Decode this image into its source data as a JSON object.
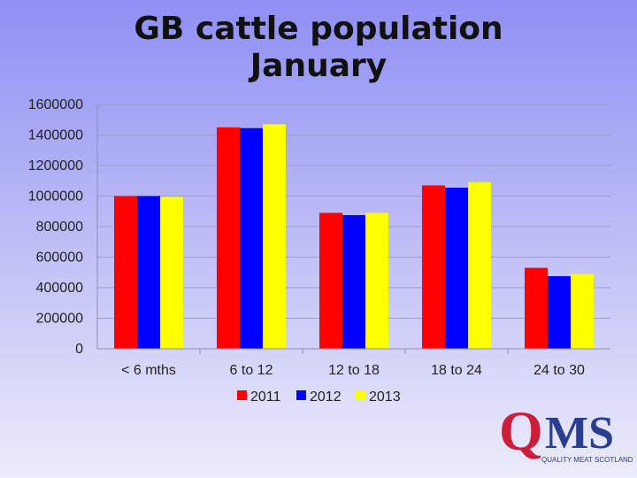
{
  "colors": {
    "2011": "#ff0000",
    "2012": "#0000ff",
    "2013": "#ffff00"
  },
  "logo": {
    "text": "QMS",
    "tagline": "QUALITY MEAT SCOTLAND"
  },
  "chart_data": {
    "type": "bar",
    "title": [
      "GB cattle population",
      "January"
    ],
    "categories": [
      "< 6 mths",
      "6 to 12",
      "12 to 18",
      "18 to 24",
      "24 to 30"
    ],
    "series": [
      {
        "name": "2011",
        "values": [
          1000000,
          1450000,
          890000,
          1070000,
          530000
        ]
      },
      {
        "name": "2012",
        "values": [
          1000000,
          1445000,
          875000,
          1055000,
          475000
        ]
      },
      {
        "name": "2013",
        "values": [
          995000,
          1470000,
          890000,
          1090000,
          490000
        ]
      }
    ],
    "yticks": [
      0,
      200000,
      400000,
      600000,
      800000,
      1000000,
      1200000,
      1400000,
      1600000
    ],
    "ylim": [
      0,
      1600000
    ],
    "grid": true,
    "legend": "bottom",
    "xlabel": "",
    "ylabel": ""
  }
}
